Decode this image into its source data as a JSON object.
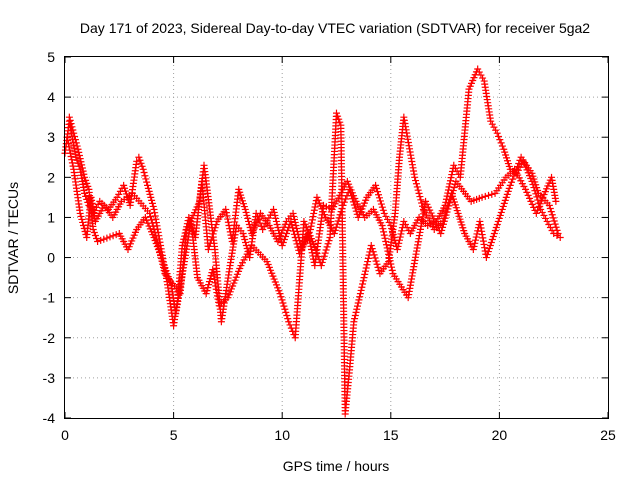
{
  "chart_data": {
    "type": "scatter",
    "title": "Day 171 of 2023, Sidereal Day-to-day VTEC variation (SDTVAR) for receiver 5ga2",
    "xlabel": "GPS time / hours",
    "ylabel": "SDTVAR / TECUs",
    "xlim": [
      0,
      25
    ],
    "ylim": [
      -4,
      5
    ],
    "xticks": [
      "0",
      "5",
      "10",
      "15",
      "20",
      "25"
    ],
    "yticks": [
      "-4",
      "-3",
      "-2",
      "-1",
      "0",
      "1",
      "2",
      "3",
      "4",
      "5"
    ],
    "grid": true,
    "marker": "plus",
    "color": "#ff0000",
    "series": [
      {
        "name": "SDTVAR",
        "color": "#ff0000",
        "x": [
          0.0,
          0.2,
          0.3,
          0.5,
          0.7,
          0.9,
          1.1,
          1.3,
          1.6,
          2.0,
          2.4,
          2.7,
          3.0,
          3.3,
          3.4,
          3.6,
          3.8,
          4.1,
          4.4,
          4.7,
          5.0,
          5.2,
          5.4,
          5.7,
          6.0,
          6.3,
          6.6,
          7.0,
          7.4,
          7.7,
          8.0,
          8.3,
          8.6,
          9.0,
          9.4,
          9.8,
          10.2,
          10.5,
          10.9,
          11.3,
          11.6,
          12.0,
          12.4,
          12.8,
          13.1,
          13.5,
          13.9,
          14.3,
          14.7,
          15.0,
          15.3,
          15.6,
          15.9,
          16.3,
          16.7,
          17.1,
          17.5,
          17.9,
          18.2,
          18.6,
          19.0,
          19.3,
          19.6,
          19.9,
          20.2,
          20.5,
          20.8,
          21.1,
          21.5,
          21.9,
          22.2,
          22.5,
          22.8
        ],
        "y": [
          2.6,
          3.4,
          3.1,
          2.5,
          2.2,
          1.6,
          1.3,
          1.1,
          1.4,
          1.2,
          1.5,
          1.8,
          1.3,
          2.4,
          2.5,
          2.2,
          1.8,
          1.2,
          0.3,
          -0.6,
          -1.7,
          -1.0,
          0.3,
          1.0,
          0.5,
          1.9,
          0.2,
          0.9,
          1.2,
          0.4,
          1.7,
          1.2,
          0.6,
          1.1,
          0.8,
          0.4,
          0.9,
          1.1,
          0.2,
          0.7,
          1.5,
          1.0,
          0.6,
          1.3,
          1.7,
          1.0,
          1.5,
          1.8,
          1.1,
          0.8,
          0.2,
          0.9,
          0.6,
          1.0,
          0.8,
          0.9,
          1.3,
          2.3,
          2.0,
          4.2,
          4.7,
          4.4,
          3.4,
          3.1,
          2.7,
          2.2,
          2.1,
          2.4,
          1.9,
          1.2,
          0.9,
          0.6,
          0.5
        ]
      },
      {
        "name": "SDTVAR",
        "color": "#ff0000",
        "x": [
          0.2,
          0.6,
          0.9,
          1.1,
          1.3,
          1.5,
          2.5,
          2.9,
          3.3,
          3.7,
          4.1,
          4.5,
          4.9,
          5.1,
          5.5,
          5.8,
          6.1,
          6.5,
          6.8,
          7.1,
          7.5,
          8.1,
          8.6,
          9.3,
          9.9,
          10.3,
          10.6,
          11.0,
          11.4,
          11.8,
          12.2,
          12.5,
          12.7,
          12.9,
          13.1,
          13.3,
          13.6,
          14.1,
          14.5,
          14.9,
          15.2,
          15.4,
          15.6,
          16.1,
          16.5,
          17.0,
          17.4,
          17.8,
          18.1,
          18.4,
          18.8,
          19.1,
          19.4,
          20.5,
          21.0,
          21.5,
          21.8,
          22.3,
          22.7
        ],
        "y": [
          3.5,
          2.7,
          2.0,
          1.7,
          0.7,
          0.4,
          0.6,
          0.2,
          0.7,
          1.0,
          0.5,
          -0.1,
          -0.7,
          -1.4,
          -0.1,
          0.9,
          -0.5,
          -0.9,
          -0.3,
          -1.2,
          -1.0,
          -0.2,
          0.3,
          -0.1,
          -0.9,
          -1.6,
          -2.0,
          0.9,
          0.4,
          -0.2,
          0.5,
          3.6,
          3.3,
          -3.9,
          -2.8,
          -1.6,
          -0.9,
          0.3,
          -0.4,
          -0.1,
          1.1,
          2.5,
          3.5,
          2.0,
          1.2,
          0.7,
          0.9,
          1.6,
          1.1,
          0.6,
          0.2,
          0.9,
          0.0,
          1.8,
          2.5,
          2.1,
          1.6,
          1.3,
          0.6
        ]
      },
      {
        "name": "SDTVAR",
        "color": "#ff0000",
        "x": [
          0.1,
          0.4,
          0.7,
          1.0,
          1.2,
          1.4,
          1.8,
          2.2,
          2.6,
          3.1,
          3.9,
          4.3,
          4.6,
          5.3,
          5.6,
          6.2,
          6.4,
          6.9,
          7.2,
          7.6,
          7.9,
          8.2,
          8.5,
          8.8,
          9.1,
          9.6,
          10.0,
          10.4,
          10.8,
          11.2,
          11.5,
          11.9,
          12.3,
          13.0,
          13.4,
          13.8,
          14.2,
          14.6,
          15.1,
          15.8,
          16.6,
          17.3,
          18.0,
          18.7,
          19.2,
          19.8,
          20.3,
          20.7,
          21.2,
          21.7,
          22.0,
          22.4,
          22.6
        ],
        "y": [
          3.0,
          2.2,
          1.1,
          0.5,
          1.5,
          0.9,
          1.3,
          1.0,
          1.4,
          1.6,
          1.1,
          0.3,
          -0.4,
          -0.9,
          0.7,
          1.4,
          2.3,
          0.2,
          -1.6,
          -0.2,
          0.8,
          0.6,
          0.0,
          1.1,
          0.7,
          1.2,
          0.3,
          0.9,
          0.1,
          0.6,
          -0.2,
          1.3,
          1.2,
          1.9,
          1.4,
          1.0,
          1.2,
          0.8,
          -0.4,
          -1.0,
          1.4,
          0.6,
          1.9,
          1.4,
          1.5,
          1.6,
          2.0,
          2.2,
          1.7,
          1.1,
          1.5,
          2.0,
          1.4
        ]
      }
    ]
  }
}
